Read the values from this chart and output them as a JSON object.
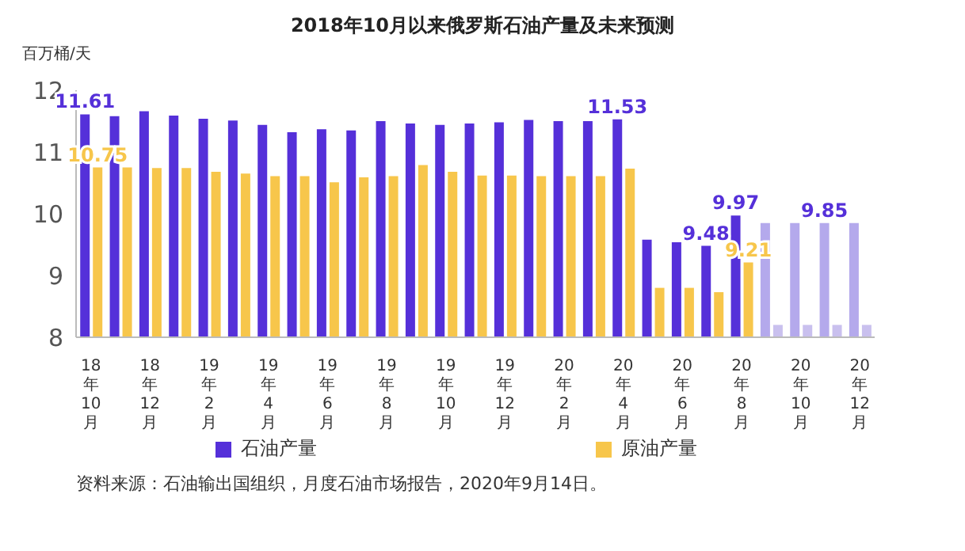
{
  "chart_data": {
    "type": "bar",
    "title": "2018年10月以来俄罗斯石油产量及未来预测",
    "ylabel": "百万桶/天",
    "categories": [
      "18年10月",
      null,
      "18年12月",
      null,
      "19年2月",
      null,
      "19年4月",
      null,
      "19年6月",
      null,
      "19年8月",
      null,
      "19年10月",
      null,
      "19年12月",
      null,
      "20年2月",
      null,
      "20年4月",
      null,
      "20年6月",
      null,
      "20年8月",
      null,
      "20年10月",
      null,
      "20年12月"
    ],
    "series": [
      {
        "name": "石油产量",
        "color": "#5530d9",
        "colors": [
          "#5530d9",
          "#5530d9",
          "#5530d9",
          "#5530d9",
          "#5530d9",
          "#5530d9",
          "#5530d9",
          "#5530d9",
          "#5530d9",
          "#5530d9",
          "#5530d9",
          "#5530d9",
          "#5530d9",
          "#5530d9",
          "#5530d9",
          "#5530d9",
          "#5530d9",
          "#5530d9",
          "#5530d9",
          "#5530d9",
          "#5530d9",
          "#5530d9",
          "#5530d9",
          "#b4a9ec",
          "#b4a9ec",
          "#b4a9ec",
          "#b4a9ec"
        ],
        "values": [
          11.61,
          11.58,
          11.66,
          11.59,
          11.54,
          11.51,
          11.44,
          11.32,
          11.37,
          11.35,
          11.5,
          11.46,
          11.44,
          11.46,
          11.48,
          11.52,
          11.5,
          11.5,
          11.53,
          9.58,
          9.54,
          9.48,
          9.97,
          9.85,
          9.85,
          9.85,
          9.85
        ],
        "value_labels": [
          "11.61",
          null,
          null,
          null,
          null,
          null,
          null,
          null,
          null,
          null,
          null,
          null,
          null,
          null,
          null,
          null,
          null,
          null,
          "11.53",
          null,
          null,
          "9.48",
          "9.97",
          null,
          null,
          "9.85",
          null
        ]
      },
      {
        "name": "原油产量",
        "color": "#f7c64b",
        "colors": [
          "#f7c64b",
          "#f7c64b",
          "#f7c64b",
          "#f7c64b",
          "#f7c64b",
          "#f7c64b",
          "#f7c64b",
          "#f7c64b",
          "#f7c64b",
          "#f7c64b",
          "#f7c64b",
          "#f7c64b",
          "#f7c64b",
          "#f7c64b",
          "#f7c64b",
          "#f7c64b",
          "#f7c64b",
          "#f7c64b",
          "#f7c64b",
          "#f7c64b",
          "#f7c64b",
          "#f7c64b",
          "#f7c64b",
          "#c9c0ee",
          "#c9c0ee",
          "#c9c0ee",
          "#c9c0ee"
        ],
        "values": [
          10.75,
          10.75,
          10.74,
          10.74,
          10.68,
          10.65,
          10.61,
          10.61,
          10.51,
          10.59,
          10.61,
          10.79,
          10.68,
          10.62,
          10.62,
          10.61,
          10.61,
          10.61,
          10.73,
          8.8,
          8.8,
          8.73,
          9.21,
          8.2,
          8.2,
          8.2,
          8.2
        ],
        "value_labels": [
          "10.75",
          null,
          null,
          null,
          null,
          null,
          null,
          null,
          null,
          null,
          null,
          null,
          null,
          null,
          null,
          null,
          null,
          null,
          null,
          null,
          null,
          null,
          "9.21",
          null,
          null,
          null,
          null
        ]
      }
    ],
    "ylim": [
      8,
      12
    ],
    "yticks": [
      8,
      9,
      10,
      11,
      12
    ],
    "grid": false,
    "legend": "bottom",
    "annotations": [
      "资料来源：石油输出国组织，月度石油市场报告，2020年9月14日。"
    ]
  }
}
